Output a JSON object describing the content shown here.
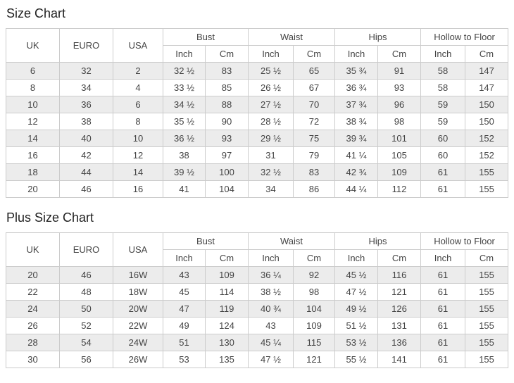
{
  "colors": {
    "stripe": "#ececec",
    "border": "#cccccc",
    "cell_text": "#444444",
    "title_text": "#222222",
    "background": "#ffffff"
  },
  "tables": [
    {
      "title": "Size Chart",
      "columns": {
        "uk": "UK",
        "euro": "EURO",
        "usa": "USA"
      },
      "groups": [
        {
          "label": "Bust",
          "sub": [
            "Inch",
            "Cm"
          ]
        },
        {
          "label": "Waist",
          "sub": [
            "Inch",
            "Cm"
          ]
        },
        {
          "label": "Hips",
          "sub": [
            "Inch",
            "Cm"
          ]
        },
        {
          "label": "Hollow to Floor",
          "sub": [
            "Inch",
            "Cm"
          ]
        }
      ],
      "rows": [
        [
          "6",
          "32",
          "2",
          "32 ½",
          "83",
          "25 ½",
          "65",
          "35 ¾",
          "91",
          "58",
          "147"
        ],
        [
          "8",
          "34",
          "4",
          "33 ½",
          "85",
          "26 ½",
          "67",
          "36 ¾",
          "93",
          "58",
          "147"
        ],
        [
          "10",
          "36",
          "6",
          "34 ½",
          "88",
          "27 ½",
          "70",
          "37 ¾",
          "96",
          "59",
          "150"
        ],
        [
          "12",
          "38",
          "8",
          "35 ½",
          "90",
          "28 ½",
          "72",
          "38 ¾",
          "98",
          "59",
          "150"
        ],
        [
          "14",
          "40",
          "10",
          "36 ½",
          "93",
          "29 ½",
          "75",
          "39 ¾",
          "101",
          "60",
          "152"
        ],
        [
          "16",
          "42",
          "12",
          "38",
          "97",
          "31",
          "79",
          "41 ¼",
          "105",
          "60",
          "152"
        ],
        [
          "18",
          "44",
          "14",
          "39 ½",
          "100",
          "32 ½",
          "83",
          "42 ¾",
          "109",
          "61",
          "155"
        ],
        [
          "20",
          "46",
          "16",
          "41",
          "104",
          "34",
          "86",
          "44 ¼",
          "112",
          "61",
          "155"
        ]
      ]
    },
    {
      "title": "Plus Size Chart",
      "columns": {
        "uk": "UK",
        "euro": "EURO",
        "usa": "USA"
      },
      "groups": [
        {
          "label": "Bust",
          "sub": [
            "Inch",
            "Cm"
          ]
        },
        {
          "label": "Waist",
          "sub": [
            "Inch",
            "Cm"
          ]
        },
        {
          "label": "Hips",
          "sub": [
            "Inch",
            "Cm"
          ]
        },
        {
          "label": "Hollow to Floor",
          "sub": [
            "Inch",
            "Cm"
          ]
        }
      ],
      "rows": [
        [
          "20",
          "46",
          "16W",
          "43",
          "109",
          "36 ¼",
          "92",
          "45 ½",
          "116",
          "61",
          "155"
        ],
        [
          "22",
          "48",
          "18W",
          "45",
          "114",
          "38 ½",
          "98",
          "47 ½",
          "121",
          "61",
          "155"
        ],
        [
          "24",
          "50",
          "20W",
          "47",
          "119",
          "40 ¾",
          "104",
          "49 ½",
          "126",
          "61",
          "155"
        ],
        [
          "26",
          "52",
          "22W",
          "49",
          "124",
          "43",
          "109",
          "51 ½",
          "131",
          "61",
          "155"
        ],
        [
          "28",
          "54",
          "24W",
          "51",
          "130",
          "45 ¼",
          "115",
          "53 ½",
          "136",
          "61",
          "155"
        ],
        [
          "30",
          "56",
          "26W",
          "53",
          "135",
          "47 ½",
          "121",
          "55 ½",
          "141",
          "61",
          "155"
        ]
      ]
    }
  ]
}
